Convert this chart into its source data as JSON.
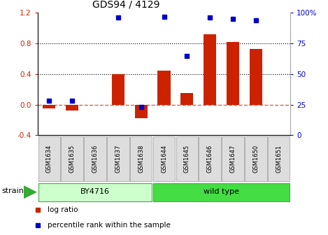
{
  "title": "GDS94 / 4129",
  "samples": [
    "GSM1634",
    "GSM1635",
    "GSM1636",
    "GSM1637",
    "GSM1638",
    "GSM1644",
    "GSM1645",
    "GSM1646",
    "GSM1647",
    "GSM1650",
    "GSM1651"
  ],
  "log_ratio": [
    -0.05,
    -0.08,
    0.0,
    0.4,
    -0.18,
    0.44,
    0.15,
    0.92,
    0.82,
    0.73,
    0.0
  ],
  "percentile_rank": [
    28,
    28,
    null,
    96,
    23,
    97,
    65,
    96,
    95,
    94,
    null
  ],
  "groups": [
    {
      "label": "BY4716",
      "indices": [
        0,
        1,
        2,
        3,
        4
      ],
      "facecolor": "#ccffcc",
      "edgecolor": "#44aa44"
    },
    {
      "label": "wild type",
      "indices": [
        5,
        6,
        7,
        8,
        9,
        10
      ],
      "facecolor": "#44dd44",
      "edgecolor": "#44aa44"
    }
  ],
  "bar_color": "#cc2200",
  "dot_color": "#0000cc",
  "ylim_left": [
    -0.4,
    1.2
  ],
  "ylim_right": [
    0,
    100
  ],
  "yticks_left": [
    -0.4,
    0.0,
    0.4,
    0.8,
    1.2
  ],
  "yticks_right": [
    0,
    25,
    50,
    75,
    100
  ],
  "hlines": [
    0.4,
    0.8
  ],
  "zero_line_color": "#cc2200",
  "background_color": "#ffffff",
  "strain_label": "strain",
  "legend_items": [
    {
      "label": "log ratio",
      "color": "#cc2200"
    },
    {
      "label": "percentile rank within the sample",
      "color": "#0000cc"
    }
  ]
}
